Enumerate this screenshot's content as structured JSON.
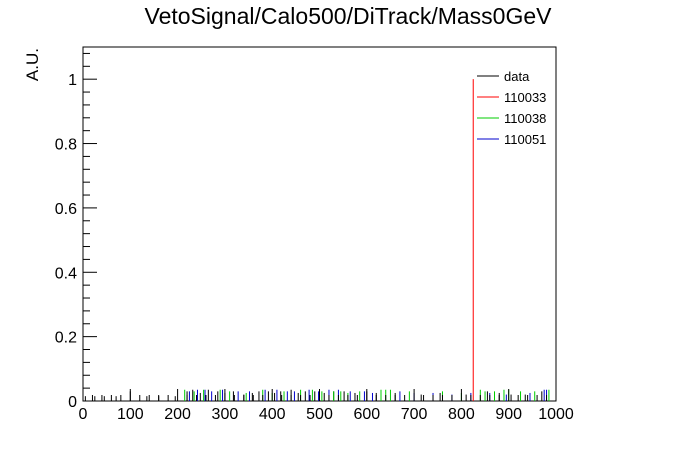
{
  "chart_data": {
    "type": "line",
    "title": "VetoSignal/Calo500/DiTrack/Mass0GeV",
    "xlabel": "",
    "ylabel": "A.U.",
    "xlim": [
      0,
      1000
    ],
    "ylim": [
      0,
      1.1
    ],
    "x_ticks": [
      0,
      100,
      200,
      300,
      400,
      500,
      600,
      700,
      800,
      900,
      1000
    ],
    "y_ticks": [
      0,
      0.2,
      0.4,
      0.6,
      0.8,
      1
    ],
    "legend_position": "top-right",
    "series": [
      {
        "name": "data",
        "color": "#000000",
        "x": [
          5,
          25,
          45,
          70,
          100,
          135,
          160,
          195,
          220,
          232,
          248,
          265,
          285,
          300,
          318,
          340,
          358,
          372,
          392,
          405,
          418,
          440,
          455,
          470,
          490,
          510,
          530,
          552,
          575,
          600,
          620,
          660,
          715,
          755,
          810,
          855,
          880,
          905,
          935,
          970
        ],
        "y": [
          0.015,
          0.015,
          0.015,
          0.015,
          0.03,
          0.015,
          0.015,
          0.015,
          0.03,
          0.035,
          0.025,
          0.035,
          0.03,
          0.025,
          0.03,
          0.02,
          0.025,
          0.03,
          0.03,
          0.025,
          0.03,
          0.035,
          0.025,
          0.03,
          0.03,
          0.025,
          0.03,
          0.03,
          0.025,
          0.03,
          0.025,
          0.025,
          0.02,
          0.025,
          0.02,
          0.03,
          0.025,
          0.02,
          0.02,
          0.03
        ]
      },
      {
        "name": "110033",
        "color": "#ff0000",
        "x": [
          825
        ],
        "y": [
          1.0
        ]
      },
      {
        "name": "110038",
        "color": "#00cc00",
        "x": [
          215,
          235,
          255,
          290,
          310,
          345,
          380,
          400,
          425,
          460,
          485,
          505,
          530,
          545,
          560,
          585,
          630,
          640,
          650,
          690,
          760,
          800,
          840,
          850,
          870,
          890,
          900,
          925,
          955,
          985
        ],
        "y": [
          0.035,
          0.03,
          0.035,
          0.035,
          0.03,
          0.025,
          0.035,
          0.025,
          0.03,
          0.035,
          0.035,
          0.03,
          0.03,
          0.03,
          0.025,
          0.03,
          0.035,
          0.035,
          0.035,
          0.03,
          0.03,
          0.025,
          0.035,
          0.03,
          0.03,
          0.035,
          0.035,
          0.03,
          0.03,
          0.035
        ]
      },
      {
        "name": "110051",
        "color": "#0000cc",
        "x": [
          225,
          242,
          258,
          272,
          295,
          328,
          352,
          385,
          410,
          432,
          447,
          478,
          498,
          520,
          540,
          565,
          595,
          612,
          670,
          700,
          740,
          780,
          820,
          860,
          895,
          945,
          975,
          980
        ],
        "y": [
          0.03,
          0.035,
          0.035,
          0.03,
          0.035,
          0.03,
          0.03,
          0.035,
          0.035,
          0.03,
          0.03,
          0.035,
          0.03,
          0.035,
          0.035,
          0.03,
          0.03,
          0.025,
          0.03,
          0.025,
          0.025,
          0.02,
          0.025,
          0.025,
          0.02,
          0.025,
          0.035,
          0.035
        ]
      }
    ]
  }
}
